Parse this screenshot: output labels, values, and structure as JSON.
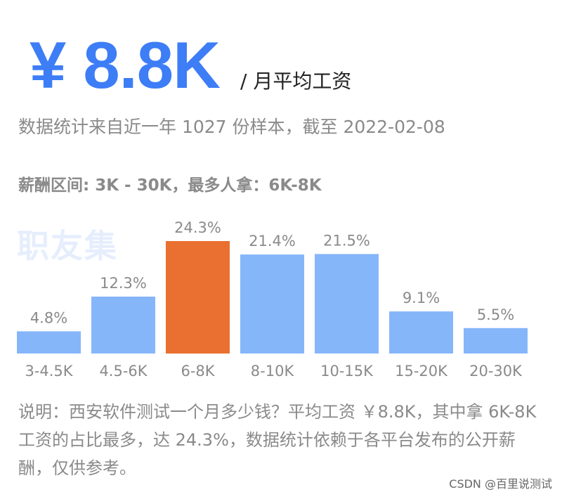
{
  "header": {
    "salary": "¥ 8.8K",
    "salary_unit": "/ 月平均工资",
    "subtitle": "数据统计来自近一年 1027 份样本，截至 2022-02-08",
    "range_line": "薪酬区间: 3K - 30K，最多人拿：6K-8K",
    "watermark": "职友集"
  },
  "chart_data": {
    "type": "bar",
    "categories": [
      "3-4.5K",
      "4.5-6K",
      "6-8K",
      "8-10K",
      "10-15K",
      "15-20K",
      "20-30K"
    ],
    "values": [
      4.8,
      12.3,
      24.3,
      21.4,
      21.5,
      9.1,
      5.5
    ],
    "value_labels": [
      "4.8%",
      "12.3%",
      "24.3%",
      "21.4%",
      "21.5%",
      "9.1%",
      "5.5%"
    ],
    "highlight_index": 2,
    "colors": {
      "bar": "#86b6fa",
      "highlight": "#e97030",
      "label": "#8a8a8a"
    },
    "ylim": [
      0,
      24.3
    ],
    "grid": false
  },
  "footer": {
    "note": "说明：西安软件测试一个月多少钱？平均工资 ￥8.8K，其中拿 6K-8K 工资的占比最多，达 24.3%，数据统计依赖于各平台发布的公开薪酬，仅供参考。",
    "credit": "CSDN @百里说测试"
  }
}
